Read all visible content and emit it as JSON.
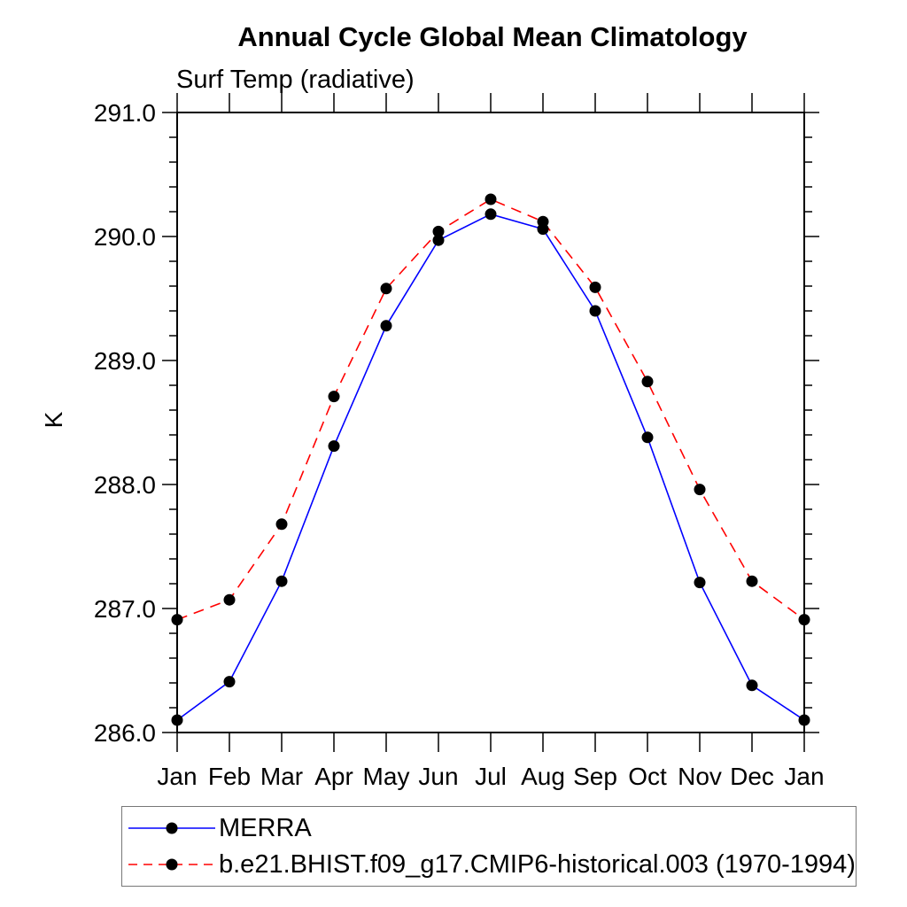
{
  "chart_data": {
    "type": "line",
    "title": "Annual Cycle Global Mean Climatology",
    "subtitle": "Surf Temp (radiative)",
    "ylabel": "K",
    "x_categories": [
      "Jan",
      "Feb",
      "Mar",
      "Apr",
      "May",
      "Jun",
      "Jul",
      "Aug",
      "Sep",
      "Oct",
      "Nov",
      "Dec",
      "Jan"
    ],
    "ylim": [
      286.0,
      291.0
    ],
    "ytick_values": [
      291.0,
      290.0,
      289.0,
      288.0,
      287.0,
      286.0
    ],
    "ytick_labels": [
      "291.0",
      "290.0",
      "289.0",
      "288.0",
      "287.0",
      "286.0"
    ],
    "yminor_interval": 0.2,
    "grid": false,
    "legend_position": "bottom-left",
    "axis_color": "#000000",
    "marker": "filled-circle",
    "marker_color": "#000000",
    "series": [
      {
        "name": "MERRA",
        "color": "#0000ff",
        "line_style": "solid",
        "values": [
          286.1,
          286.41,
          287.22,
          288.31,
          289.28,
          289.97,
          290.18,
          290.06,
          289.4,
          288.38,
          287.21,
          286.38,
          286.1
        ]
      },
      {
        "name": "b.e21.BHIST.f09_g17.CMIP6-historical.003 (1970-1994)",
        "color": "#ff0000",
        "line_style": "dashed",
        "values": [
          286.91,
          287.07,
          287.68,
          288.71,
          289.58,
          290.04,
          290.3,
          290.12,
          289.59,
          288.83,
          287.96,
          287.22,
          286.91
        ]
      }
    ]
  }
}
